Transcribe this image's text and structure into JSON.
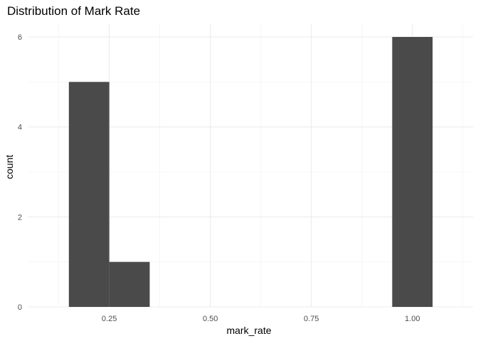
{
  "chart_data": {
    "type": "histogram",
    "title": "Distribution of Mark Rate",
    "xlabel": "mark_rate",
    "ylabel": "count",
    "xlim": [
      0.05,
      1.15
    ],
    "ylim": [
      0,
      6.3
    ],
    "x_major_ticks": [
      0.25,
      0.5,
      0.75,
      1.0
    ],
    "x_tick_labels": [
      "0.25",
      "0.50",
      "0.75",
      "1.00"
    ],
    "x_minor_ticks": [
      0.125,
      0.375,
      0.625,
      0.875,
      1.125
    ],
    "y_major_ticks": [
      0,
      2,
      4,
      6
    ],
    "y_tick_labels": [
      "0",
      "2",
      "4",
      "6"
    ],
    "y_minor_ticks": [
      1,
      3,
      5
    ],
    "bin_width": 0.1,
    "bins": [
      {
        "x0": 0.15,
        "x1": 0.25,
        "count": 5
      },
      {
        "x0": 0.25,
        "x1": 0.35,
        "count": 1
      },
      {
        "x0": 0.95,
        "x1": 1.05,
        "count": 6
      }
    ],
    "bar_color": "#4a4a4a",
    "grid": true,
    "theme": "minimal"
  }
}
